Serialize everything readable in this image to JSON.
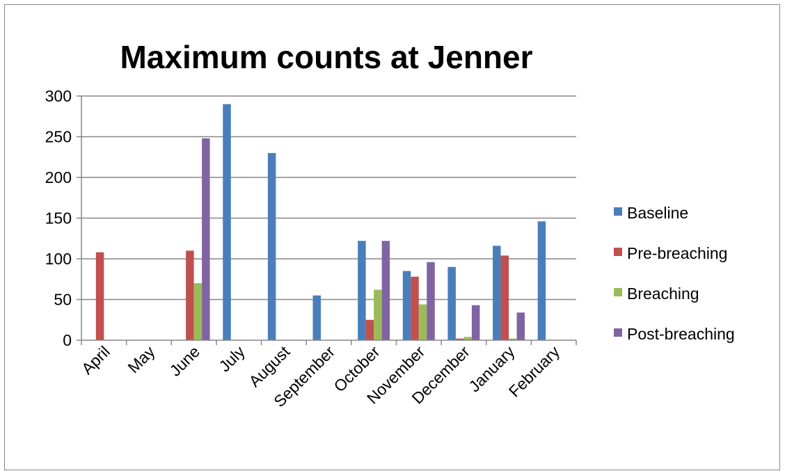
{
  "chart_data": {
    "type": "bar",
    "title": "Maximum counts at Jenner",
    "xlabel": "",
    "ylabel": "",
    "ylim": [
      0,
      300
    ],
    "yticks": [
      0,
      50,
      100,
      150,
      200,
      250,
      300
    ],
    "grid": true,
    "legend_position": "right",
    "categories": [
      "April",
      "May",
      "June",
      "July",
      "August",
      "September",
      "October",
      "November",
      "December",
      "January",
      "February"
    ],
    "series": [
      {
        "name": "Baseline",
        "color": "#4a7ebb",
        "values": [
          0,
          0,
          0,
          290,
          230,
          55,
          122,
          85,
          90,
          116,
          146
        ]
      },
      {
        "name": "Pre-breaching",
        "color": "#c0504d",
        "values": [
          108,
          0,
          110,
          0,
          0,
          0,
          25,
          78,
          2,
          104,
          0
        ]
      },
      {
        "name": "Breaching",
        "color": "#9bbb59",
        "values": [
          0,
          0,
          70,
          0,
          0,
          0,
          62,
          44,
          4,
          2,
          0
        ]
      },
      {
        "name": "Post-breaching",
        "color": "#8064a2",
        "values": [
          0,
          0,
          248,
          0,
          0,
          0,
          122,
          96,
          43,
          34,
          0
        ]
      }
    ]
  }
}
